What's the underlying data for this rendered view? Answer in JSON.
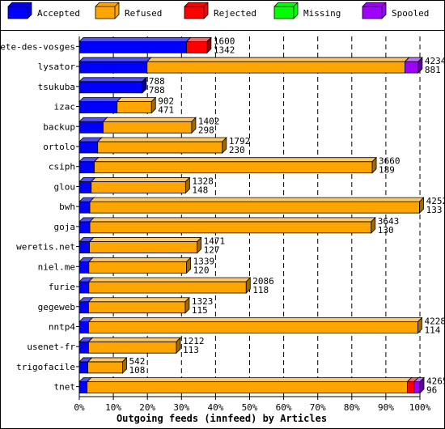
{
  "chart_data": {
    "type": "bar",
    "orientation": "horizontal",
    "stacked": "percent",
    "style": "3d",
    "title": "",
    "xlabel": "Outgoing feeds (innfeed) by Articles",
    "ylabel": "",
    "xlim": [
      0,
      100
    ],
    "grid": true,
    "legend_position": "top",
    "x_ticks": [
      "0%",
      "10%",
      "20%",
      "30%",
      "40%",
      "50%",
      "60%",
      "70%",
      "80%",
      "90%",
      "100%"
    ],
    "series": [
      {
        "name": "Accepted",
        "color": "#0000ff",
        "side": "#0000a0",
        "top": "#5050ff"
      },
      {
        "name": "Refused",
        "color": "#ffa500",
        "side": "#a06a00",
        "top": "#ffc861"
      },
      {
        "name": "Rejected",
        "color": "#ff0000",
        "side": "#a00000",
        "top": "#ff6060"
      },
      {
        "name": "Missing",
        "color": "#00ff00",
        "side": "#00a000",
        "top": "#70ff70"
      },
      {
        "name": "Spooled",
        "color": "#a000ff",
        "side": "#6000a0",
        "top": "#c870ff"
      }
    ],
    "categories": [
      "bete-des-vosges",
      "lysator",
      "tsukuba",
      "izac",
      "backup",
      "ortolo",
      "csiph",
      "glou",
      "bwh",
      "goja",
      "weretis.net",
      "niel.me",
      "furie",
      "gegeweb",
      "nntp4",
      "usenet-fr",
      "trigofacile",
      "tnet"
    ],
    "rows": [
      {
        "label": "bete-des-vosges",
        "total": "1600",
        "accepted": "1342",
        "percent": [
          31.5,
          0,
          6.0,
          0,
          0
        ],
        "length": 37.5
      },
      {
        "label": "lysator",
        "total": "4234",
        "accepted": "881",
        "percent": [
          20.5,
          78.0,
          0,
          0,
          4.0
        ],
        "length": 99.5
      },
      {
        "label": "tsukuba",
        "total": "788",
        "accepted": "788",
        "percent": [
          18.5,
          0,
          0,
          0,
          0
        ],
        "length": 18.5
      },
      {
        "label": "izac",
        "total": "902",
        "accepted": "471",
        "percent": [
          11.1,
          10.1,
          0,
          0,
          0
        ],
        "length": 21.2
      },
      {
        "label": "backup",
        "total": "1402",
        "accepted": "298",
        "percent": [
          7.0,
          26.0,
          0,
          0,
          0
        ],
        "length": 33.0
      },
      {
        "label": "ortolo",
        "total": "1792",
        "accepted": "230",
        "percent": [
          5.4,
          36.6,
          0,
          0,
          0
        ],
        "length": 42.0
      },
      {
        "label": "csiph",
        "total": "3660",
        "accepted": "189",
        "percent": [
          4.4,
          81.6,
          0,
          0,
          0
        ],
        "length": 86.0
      },
      {
        "label": "glou",
        "total": "1328",
        "accepted": "148",
        "percent": [
          3.5,
          27.7,
          0,
          0,
          0
        ],
        "length": 31.2
      },
      {
        "label": "bwh",
        "total": "4252",
        "accepted": "133",
        "percent": [
          3.1,
          96.8,
          0,
          0,
          0
        ],
        "length": 99.9
      },
      {
        "label": "goja",
        "total": "3643",
        "accepted": "130",
        "percent": [
          3.1,
          82.6,
          0,
          0,
          0
        ],
        "length": 85.7
      },
      {
        "label": "weretis.net",
        "total": "1471",
        "accepted": "127",
        "percent": [
          3.0,
          31.6,
          0,
          0,
          0
        ],
        "length": 34.6
      },
      {
        "label": "niel.me",
        "total": "1339",
        "accepted": "120",
        "percent": [
          2.8,
          28.7,
          0,
          0,
          0
        ],
        "length": 31.5
      },
      {
        "label": "furie",
        "total": "2086",
        "accepted": "118",
        "percent": [
          2.8,
          46.2,
          0,
          0,
          0
        ],
        "length": 49.0
      },
      {
        "label": "gegeweb",
        "total": "1323",
        "accepted": "115",
        "percent": [
          2.7,
          28.4,
          0,
          0,
          0
        ],
        "length": 31.1
      },
      {
        "label": "nntp4",
        "total": "4228",
        "accepted": "114",
        "percent": [
          2.7,
          96.7,
          0,
          0,
          0
        ],
        "length": 99.4
      },
      {
        "label": "usenet-fr",
        "total": "1212",
        "accepted": "113",
        "percent": [
          2.7,
          25.8,
          0,
          0,
          0
        ],
        "length": 28.5
      },
      {
        "label": "trigofacile",
        "total": "542",
        "accepted": "108",
        "percent": [
          2.5,
          10.2,
          0,
          0,
          0
        ],
        "length": 12.7
      },
      {
        "label": "tnet",
        "total": "4265",
        "accepted": "96",
        "percent": [
          2.3,
          94.0,
          2.0,
          0,
          1.7
        ],
        "length": 100.0
      }
    ]
  }
}
